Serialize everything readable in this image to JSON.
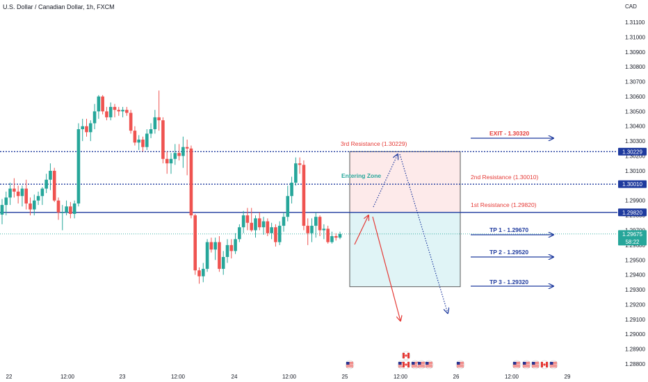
{
  "header": {
    "title": "U.S. Dollar / Canadian Dollar, 1h, FXCM",
    "currency": "CAD"
  },
  "colors": {
    "bull": "#26a69a",
    "bear": "#ef5350",
    "resistance_dotted": "#1e3a9e",
    "support_solid": "#1e3a9e",
    "current_price": "#26a69a",
    "red_text": "#e53935",
    "blue_text": "#1e3a9e",
    "entering_zone": "#26a69a",
    "zone_red_fill": "#fdeaea",
    "zone_green_fill": "#e0f4f6"
  },
  "chart_data": {
    "type": "candlestick",
    "title": "U.S. Dollar / Canadian Dollar, 1h, FXCM",
    "ylim": [
      1.2874,
      1.3128
    ],
    "y_ticks": [
      "1.31100",
      "1.31000",
      "1.30900",
      "1.30800",
      "1.30700",
      "1.30600",
      "1.30500",
      "1.30400",
      "1.30300",
      "1.30200",
      "1.30100",
      "1.30000",
      "1.29900",
      "1.29800",
      "1.29700",
      "1.29600",
      "1.29500",
      "1.29400",
      "1.29300",
      "1.29200",
      "1.29100",
      "1.29000",
      "1.28900",
      "1.28800"
    ],
    "x_ticks": [
      "22",
      "12:00",
      "23",
      "12:00",
      "24",
      "12:00",
      "25",
      "12:00",
      "26",
      "12:00",
      "29"
    ],
    "price_levels": [
      {
        "name": "line-3rd-resistance",
        "value": 1.30229,
        "label": "1.30229",
        "style": "dotted"
      },
      {
        "name": "line-2nd-resistance",
        "value": 1.3001,
        "label": "1.30010",
        "style": "dotted"
      },
      {
        "name": "line-1st-resistance",
        "value": 1.2982,
        "label": "1.29820",
        "style": "solid"
      },
      {
        "name": "line-current",
        "value": 1.29675,
        "label": "1.29675",
        "countdown": "58:22",
        "style": "current"
      }
    ],
    "annotations": {
      "third_resistance": "3rd Resistance (1.30229)",
      "second_resistance": "2nd Resistance (1.30010)",
      "first_resistance": "1st Resistance (1.29820)",
      "entering_zone": "Entering Zone",
      "exit": "EXIT - 1.30320",
      "tp1": "TP 1 - 1.29670",
      "tp2": "TP 2 - 1.29520",
      "tp3": "TP 3 - 1.29320"
    },
    "candles": [
      [
        1.29805,
        1.2991,
        1.2974,
        1.2987
      ],
      [
        1.2987,
        1.2996,
        1.298,
        1.2992
      ],
      [
        1.2992,
        1.3002,
        1.2987,
        1.2998
      ],
      [
        1.2998,
        1.3005,
        1.2992,
        1.2996
      ],
      [
        1.2996,
        1.3,
        1.2988,
        1.2993
      ],
      [
        1.2993,
        1.3,
        1.2986,
        1.2998
      ],
      [
        1.2998,
        1.3004,
        1.2984,
        1.2988
      ],
      [
        1.2988,
        1.2992,
        1.298,
        1.2984
      ],
      [
        1.2984,
        1.2994,
        1.298,
        1.299
      ],
      [
        1.299,
        1.2996,
        1.2987,
        1.2993
      ],
      [
        1.2993,
        1.2999,
        1.2987,
        1.2998
      ],
      [
        1.2998,
        1.3008,
        1.2995,
        1.3004
      ],
      [
        1.3004,
        1.3015,
        1.2997,
        1.301
      ],
      [
        1.301,
        1.3012,
        1.2989,
        1.299
      ],
      [
        1.299,
        1.2992,
        1.2977,
        1.2982
      ],
      [
        1.2982,
        1.2987,
        1.297,
        1.2982
      ],
      [
        1.2982,
        1.299,
        1.298,
        1.2986
      ],
      [
        1.2986,
        1.2989,
        1.2978,
        1.2981
      ],
      [
        1.2981,
        1.299,
        1.2978,
        1.2988
      ],
      [
        1.2988,
        1.3042,
        1.2986,
        1.3038
      ],
      [
        1.3038,
        1.3045,
        1.303,
        1.304
      ],
      [
        1.304,
        1.3045,
        1.3033,
        1.3036
      ],
      [
        1.3036,
        1.3044,
        1.303,
        1.3042
      ],
      [
        1.3042,
        1.3055,
        1.3038,
        1.305
      ],
      [
        1.305,
        1.3061,
        1.3045,
        1.306
      ],
      [
        1.306,
        1.3061,
        1.3048,
        1.305
      ],
      [
        1.305,
        1.3053,
        1.3044,
        1.3046
      ],
      [
        1.3046,
        1.3056,
        1.3044,
        1.3053
      ],
      [
        1.3053,
        1.3055,
        1.3046,
        1.3051
      ],
      [
        1.3051,
        1.3053,
        1.3047,
        1.305
      ],
      [
        1.305,
        1.3053,
        1.3046,
        1.3051
      ],
      [
        1.3051,
        1.3053,
        1.3047,
        1.3049
      ],
      [
        1.3049,
        1.3051,
        1.3035,
        1.3037
      ],
      [
        1.3037,
        1.304,
        1.3027,
        1.3029
      ],
      [
        1.3029,
        1.3034,
        1.3024,
        1.3031
      ],
      [
        1.3031,
        1.3033,
        1.3023,
        1.3026
      ],
      [
        1.3026,
        1.3038,
        1.3024,
        1.3035
      ],
      [
        1.3035,
        1.3042,
        1.3032,
        1.3038
      ],
      [
        1.3038,
        1.3051,
        1.3035,
        1.3046
      ],
      [
        1.3046,
        1.3064,
        1.3037,
        1.3044
      ],
      [
        1.3044,
        1.3046,
        1.3015,
        1.3018
      ],
      [
        1.3018,
        1.3023,
        1.3008,
        1.3015
      ],
      [
        1.3015,
        1.3022,
        1.3008,
        1.3018
      ],
      [
        1.3018,
        1.3028,
        1.3014,
        1.3022
      ],
      [
        1.3022,
        1.3028,
        1.3017,
        1.302
      ],
      [
        1.302,
        1.3033,
        1.3012,
        1.3026
      ],
      [
        1.3026,
        1.3031,
        1.3007,
        1.3025
      ],
      [
        1.3025,
        1.3027,
        1.2978,
        1.298
      ],
      [
        1.298,
        1.2981,
        1.294,
        1.2943
      ],
      [
        1.2943,
        1.2945,
        1.2934,
        1.2939
      ],
      [
        1.2939,
        1.2948,
        1.2935,
        1.2944
      ],
      [
        1.2944,
        1.2964,
        1.2942,
        1.2962
      ],
      [
        1.2962,
        1.2965,
        1.2955,
        1.2957
      ],
      [
        1.2957,
        1.2965,
        1.295,
        1.2962
      ],
      [
        1.2962,
        1.2966,
        1.2942,
        1.2944
      ],
      [
        1.2944,
        1.2956,
        1.294,
        1.2952
      ],
      [
        1.2952,
        1.2964,
        1.2948,
        1.296
      ],
      [
        1.296,
        1.2964,
        1.2951,
        1.2956
      ],
      [
        1.2956,
        1.2968,
        1.2954,
        1.2964
      ],
      [
        1.2964,
        1.2974,
        1.2962,
        1.2972
      ],
      [
        1.2972,
        1.2983,
        1.2968,
        1.298
      ],
      [
        1.298,
        1.2985,
        1.297,
        1.2975
      ],
      [
        1.2975,
        1.2985,
        1.2969,
        1.297
      ],
      [
        1.297,
        1.298,
        1.2965,
        1.2978
      ],
      [
        1.2978,
        1.2982,
        1.297,
        1.2972
      ],
      [
        1.2972,
        1.2979,
        1.2967,
        1.2976
      ],
      [
        1.2976,
        1.2978,
        1.2966,
        1.2968
      ],
      [
        1.2968,
        1.2975,
        1.2964,
        1.2972
      ],
      [
        1.2972,
        1.2974,
        1.2959,
        1.2962
      ],
      [
        1.2962,
        1.2976,
        1.296,
        1.2973
      ],
      [
        1.2973,
        1.2982,
        1.2969,
        1.2979
      ],
      [
        1.2979,
        1.3,
        1.2976,
        1.2993
      ],
      [
        1.2993,
        1.3006,
        1.2988,
        1.3002
      ],
      [
        1.3002,
        1.3019,
        1.3,
        1.3015
      ],
      [
        1.3015,
        1.3019,
        1.3008,
        1.3014
      ],
      [
        1.3014,
        1.3017,
        1.297,
        1.2973
      ],
      [
        1.2973,
        1.2978,
        1.296,
        1.2968
      ],
      [
        1.2968,
        1.2978,
        1.2962,
        1.2973
      ],
      [
        1.2973,
        1.2982,
        1.2965,
        1.2979
      ],
      [
        1.2979,
        1.298,
        1.2966,
        1.297
      ],
      [
        1.297,
        1.2974,
        1.2964,
        1.2971
      ],
      [
        1.2971,
        1.2973,
        1.2961,
        1.2962
      ],
      [
        1.2962,
        1.2969,
        1.2961,
        1.2966
      ],
      [
        1.2966,
        1.2968,
        1.2963,
        1.2965
      ],
      [
        1.2965,
        1.2969,
        1.2964,
        1.29675
      ]
    ]
  },
  "currency_events": {
    "flags": [
      "usd",
      "usd",
      "cad",
      "usd",
      "usd",
      "usd",
      "cad",
      "usd",
      "usd",
      "usd",
      "usd",
      "cad",
      "usd",
      "usd"
    ]
  }
}
